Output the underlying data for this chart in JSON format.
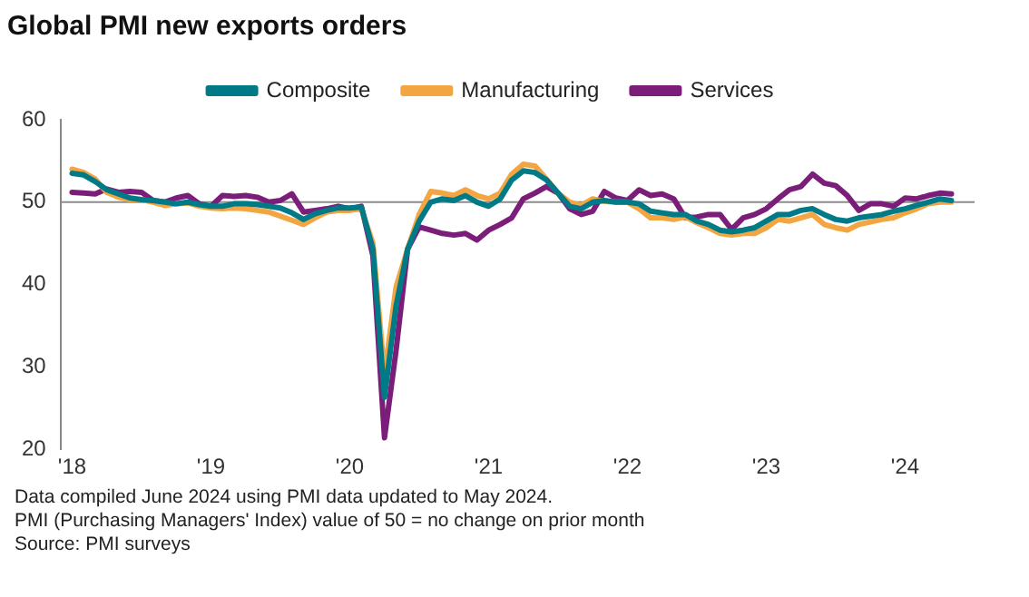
{
  "chart_data": {
    "type": "line",
    "title": "Global PMI new exports orders",
    "x": [
      "2018-01",
      "2018-02",
      "2018-03",
      "2018-04",
      "2018-05",
      "2018-06",
      "2018-07",
      "2018-08",
      "2018-09",
      "2018-10",
      "2018-11",
      "2018-12",
      "2019-01",
      "2019-02",
      "2019-03",
      "2019-04",
      "2019-05",
      "2019-06",
      "2019-07",
      "2019-08",
      "2019-09",
      "2019-10",
      "2019-11",
      "2019-12",
      "2020-01",
      "2020-02",
      "2020-03",
      "2020-04",
      "2020-05",
      "2020-06",
      "2020-07",
      "2020-08",
      "2020-09",
      "2020-10",
      "2020-11",
      "2020-12",
      "2021-01",
      "2021-02",
      "2021-03",
      "2021-04",
      "2021-05",
      "2021-06",
      "2021-07",
      "2021-08",
      "2021-09",
      "2021-10",
      "2021-11",
      "2021-12",
      "2022-01",
      "2022-02",
      "2022-03",
      "2022-04",
      "2022-05",
      "2022-06",
      "2022-07",
      "2022-08",
      "2022-09",
      "2022-10",
      "2022-11",
      "2022-12",
      "2023-01",
      "2023-02",
      "2023-03",
      "2023-04",
      "2023-05",
      "2023-06",
      "2023-07",
      "2023-08",
      "2023-09",
      "2023-10",
      "2023-11",
      "2023-12",
      "2024-01",
      "2024-02",
      "2024-03",
      "2024-04",
      "2024-05"
    ],
    "series": [
      {
        "name": "Composite",
        "color": "#007a87",
        "values": [
          53.5,
          53.3,
          52.5,
          51.5,
          51,
          50.5,
          50.3,
          50.2,
          50,
          49.8,
          50,
          49.7,
          49.5,
          49.5,
          49.8,
          49.8,
          49.7,
          49.5,
          49.3,
          48.7,
          47.9,
          48.6,
          49,
          49.3,
          49.3,
          49.4,
          44.3,
          26.3,
          37.4,
          44.3,
          47.7,
          50,
          50.4,
          50.2,
          50.8,
          50,
          49.5,
          50.4,
          52.7,
          53.8,
          53.6,
          52.7,
          51.1,
          49.5,
          49.2,
          50,
          50.2,
          50,
          50,
          49.8,
          48.9,
          48.7,
          48.5,
          48.5,
          47.7,
          47.3,
          46.6,
          46.4,
          46.6,
          46.9,
          47.7,
          48.5,
          48.5,
          49,
          49.2,
          48.5,
          47.9,
          47.7,
          48.1,
          48.3,
          48.5,
          48.9,
          49.2,
          49.6,
          50,
          50.4,
          50.2
        ]
      },
      {
        "name": "Manufacturing",
        "color": "#f2a541",
        "values": [
          54,
          53.6,
          52.8,
          51.2,
          50.6,
          50.3,
          50.3,
          50,
          49.6,
          49.8,
          49.9,
          49.5,
          49.3,
          49.2,
          49.3,
          49.2,
          49,
          48.8,
          48.3,
          47.8,
          47.3,
          48.1,
          48.8,
          49,
          49,
          49.2,
          45,
          29,
          39.7,
          44.3,
          48.5,
          51.3,
          51.1,
          50.8,
          51.5,
          50.8,
          50.4,
          51.1,
          53.4,
          54.6,
          54.4,
          52.8,
          51.1,
          50,
          49.6,
          50.4,
          50.1,
          50,
          50,
          49.2,
          48.1,
          48.1,
          47.9,
          48.2,
          47.5,
          46.9,
          46.2,
          46,
          46.2,
          46.2,
          46.9,
          47.9,
          47.7,
          48.1,
          48.5,
          47.3,
          46.9,
          46.6,
          47.3,
          47.6,
          47.9,
          48.1,
          48.7,
          49.2,
          49.8,
          50,
          50
        ]
      },
      {
        "name": "Services",
        "color": "#7b1e7a",
        "values": [
          51.2,
          51.1,
          51,
          51.6,
          51.2,
          51.3,
          51.2,
          50.2,
          50,
          50.5,
          50.8,
          49.8,
          49.5,
          50.8,
          50.7,
          50.8,
          50.6,
          50,
          50.2,
          51,
          48.8,
          49,
          49.2,
          49.5,
          49.2,
          49.5,
          43.5,
          21.4,
          32,
          44.3,
          47,
          46.6,
          46.2,
          46,
          46.2,
          45.4,
          46.6,
          47.3,
          48.1,
          50.4,
          51.1,
          51.9,
          51.1,
          49.2,
          48.5,
          48.9,
          51.3,
          50.5,
          50.2,
          51.5,
          50.8,
          51,
          50.4,
          48.1,
          48.2,
          48.5,
          48.5,
          46.7,
          48.1,
          48.5,
          49.2,
          50.4,
          51.5,
          51.9,
          53.4,
          52.3,
          52,
          50.8,
          49,
          49.8,
          49.8,
          49.5,
          50.5,
          50.4,
          50.8,
          51.1,
          51
        ]
      }
    ],
    "xlim": [
      "2017-12",
      "2024-07"
    ],
    "xticks": [
      {
        "value": "2018-01",
        "label": "'18"
      },
      {
        "value": "2019-01",
        "label": "'19"
      },
      {
        "value": "2020-01",
        "label": "'20"
      },
      {
        "value": "2021-01",
        "label": "'21"
      },
      {
        "value": "2022-01",
        "label": "'22"
      },
      {
        "value": "2023-01",
        "label": "'23"
      },
      {
        "value": "2024-01",
        "label": "'24"
      }
    ],
    "ylim": [
      20,
      60
    ],
    "yticks": [
      20,
      30,
      40,
      50,
      60
    ],
    "ref_lines": [
      {
        "axis": "y",
        "value": 50,
        "color": "#8c8c8c"
      }
    ],
    "legend": "top",
    "grid": false,
    "marker": "none",
    "line_style": "solid",
    "annotations": [
      "Data compiled June 2024 using PMI data updated to May 2024.",
      "PMI (Purchasing Managers' Index) value of 50 = no change on prior month",
      "Source: PMI surveys"
    ]
  }
}
